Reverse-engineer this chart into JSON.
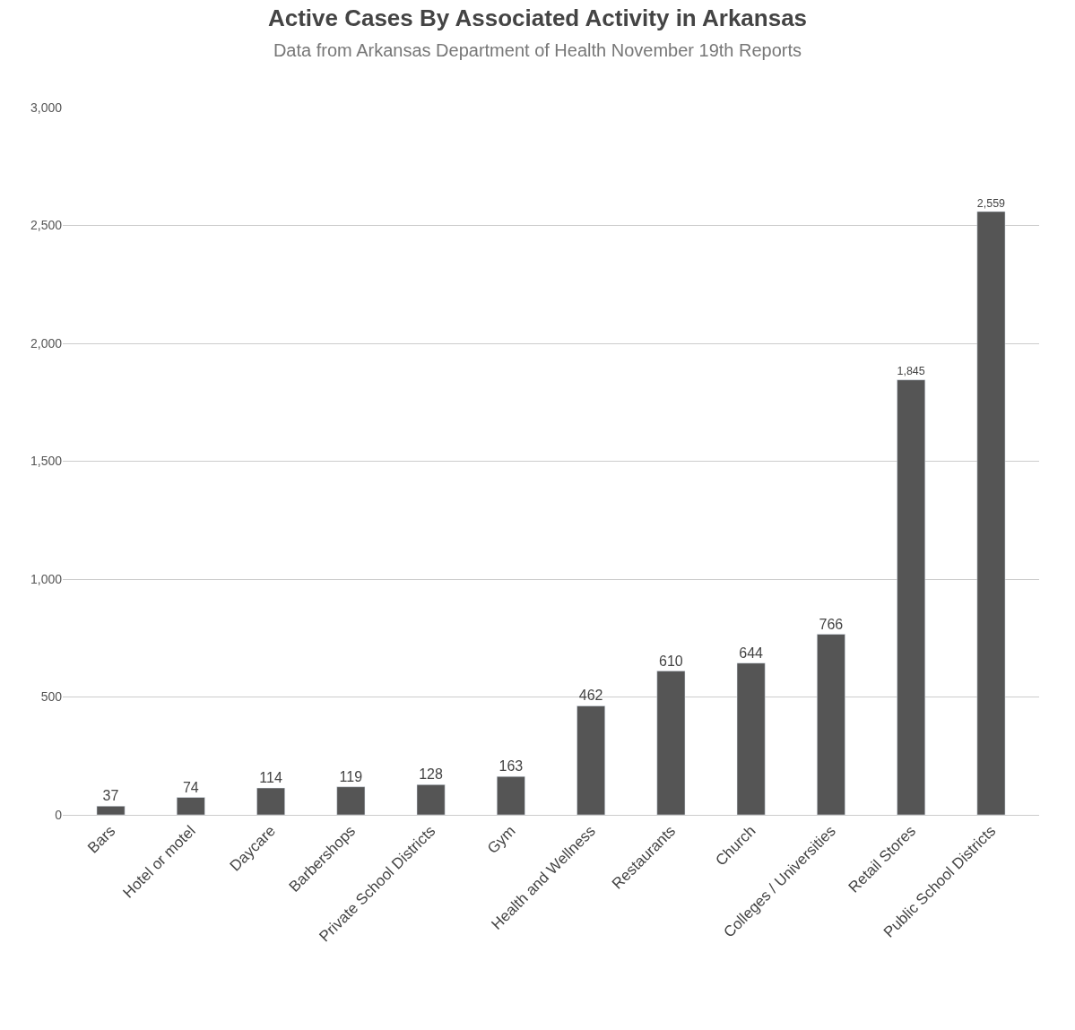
{
  "chart_data": {
    "type": "bar",
    "title": "Active Cases By Associated Activity in Arkansas",
    "subtitle": "Data from Arkansas Department of Health November 19th Reports",
    "categories": [
      "Bars",
      "Hotel or motel",
      "Daycare",
      "Barbershops",
      "Private School Districts",
      "Gym",
      "Health and Wellness",
      "Restaurants",
      "Church",
      "Colleges / Universities",
      "Retail Stores",
      "Public School Districts"
    ],
    "values": [
      37,
      74,
      114,
      119,
      128,
      163,
      462,
      610,
      644,
      766,
      1845,
      2559
    ],
    "value_labels": [
      "37",
      "74",
      "114",
      "119",
      "128",
      "163",
      "462",
      "610",
      "644",
      "766",
      "1,845",
      "2,559"
    ],
    "color": "#555555",
    "ylim": [
      0,
      3000
    ],
    "yticks": [
      0,
      {
        "value": 500,
        "label": "500"
      },
      {
        "value": 1000,
        "label": "1,000"
      },
      {
        "value": 1500,
        "label": "1,500"
      },
      {
        "value": 2000,
        "label": "2,000"
      },
      {
        "value": 2500,
        "label": "2,500"
      },
      {
        "value": 3000,
        "label": "3,000"
      }
    ],
    "grid": "y"
  }
}
